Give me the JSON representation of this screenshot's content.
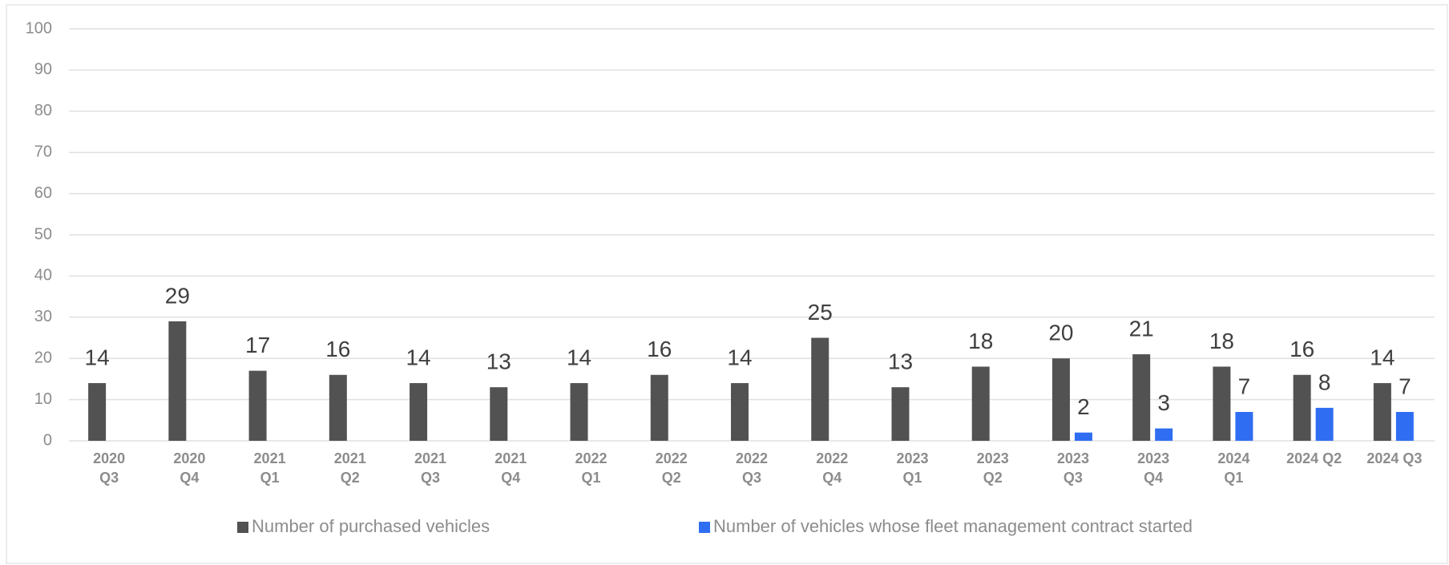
{
  "chart_data": {
    "type": "bar",
    "categories": [
      "2020\nQ3",
      "2020\nQ4",
      "2021\nQ1",
      "2021\nQ2",
      "2021\nQ3",
      "2021\nQ4",
      "2022\nQ1",
      "2022\nQ2",
      "2022\nQ3",
      "2022\nQ4",
      "2023\nQ1",
      "2023\nQ2",
      "2023\nQ3",
      "2023\nQ4",
      "2024\nQ1",
      "2024 Q2",
      "2024 Q3"
    ],
    "series": [
      {
        "name": "Number of purchased vehicles",
        "color": "#525252",
        "values": [
          14,
          29,
          17,
          16,
          14,
          13,
          14,
          16,
          14,
          25,
          13,
          18,
          20,
          21,
          18,
          16,
          14
        ]
      },
      {
        "name": "Number of vehicles whose fleet management contract started",
        "color": "#2f6ef2",
        "values": [
          null,
          null,
          null,
          null,
          null,
          null,
          null,
          null,
          null,
          null,
          null,
          null,
          2,
          3,
          7,
          8,
          7
        ]
      }
    ],
    "ylim": [
      0,
      100
    ],
    "yticks": [
      0,
      10,
      20,
      30,
      40,
      50,
      60,
      70,
      80,
      90,
      100
    ],
    "grid": true,
    "legend": "bottom"
  }
}
